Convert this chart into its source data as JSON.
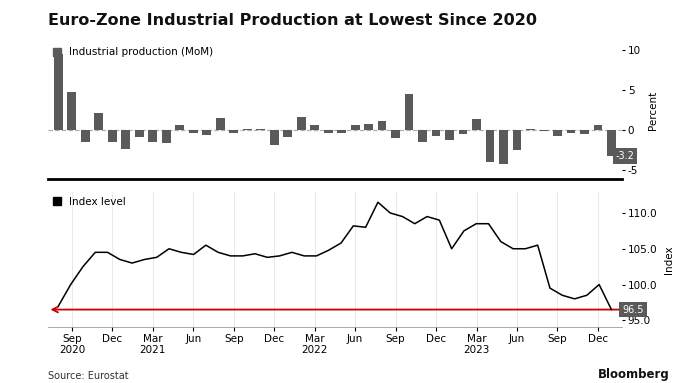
{
  "title": "Euro-Zone Industrial Production at Lowest Since 2020",
  "source": "Source: Eurostat",
  "bloomberg": "Bloomberg",
  "bar_legend": "Industrial production (MoM)",
  "line_legend": "Index level",
  "bar_color": "#5a5a5a",
  "line_color": "#000000",
  "dashed_line_color": "#b0b0b0",
  "red_arrow_color": "#cc0000",
  "background_color": "#ffffff",
  "bar_ylabel": "Percent",
  "line_ylabel": "Index",
  "bar_ylim": [
    -6,
    11
  ],
  "line_ylim": [
    94.0,
    113.0
  ],
  "bar_yticks": [
    -5,
    0,
    5,
    10
  ],
  "line_yticks": [
    95.0,
    100.0,
    105.0,
    110.0
  ],
  "last_bar_label": "-3.2",
  "last_line_label": "96.5",
  "bar_values": [
    9.5,
    4.8,
    -1.5,
    2.2,
    -1.5,
    -2.3,
    -0.8,
    -1.5,
    -1.6,
    0.7,
    -0.3,
    -0.6,
    1.5,
    -0.4,
    0.2,
    0.1,
    -1.8,
    -0.8,
    1.6,
    0.7,
    -0.3,
    -0.3,
    0.6,
    0.8,
    1.2,
    -1.0,
    4.5,
    -1.5,
    -0.7,
    -1.2,
    -0.5,
    1.4,
    -4.0,
    -4.2,
    -2.5,
    0.2,
    -0.1,
    -0.7,
    -0.4,
    -0.5,
    0.7,
    -3.2
  ],
  "line_values": [
    97.0,
    100.0,
    102.5,
    104.5,
    104.5,
    103.5,
    103.0,
    103.5,
    103.8,
    105.0,
    104.5,
    104.2,
    105.5,
    104.5,
    104.0,
    104.0,
    104.3,
    103.8,
    104.0,
    104.5,
    104.0,
    104.0,
    104.8,
    105.8,
    108.2,
    108.0,
    111.5,
    110.0,
    109.5,
    108.5,
    109.5,
    109.0,
    105.0,
    107.5,
    108.5,
    108.5,
    106.0,
    105.0,
    105.0,
    105.5,
    99.5,
    98.5,
    98.0,
    98.5,
    100.0,
    96.5
  ],
  "x_tick_positions": [
    1,
    4,
    7,
    10,
    13,
    16,
    19,
    22,
    25,
    28,
    31,
    34,
    37,
    40
  ],
  "x_tick_labels": [
    "Sep\n2020",
    "Dec",
    "Mar\n2021",
    "Jun",
    "Sep",
    "Dec",
    "Mar\n2022",
    "Jun",
    "Sep",
    "Dec",
    "Mar\n2023",
    "Jun",
    "Sep",
    "Dec"
  ],
  "grid_color": "#e0e0e0",
  "separator_color": "#000000"
}
